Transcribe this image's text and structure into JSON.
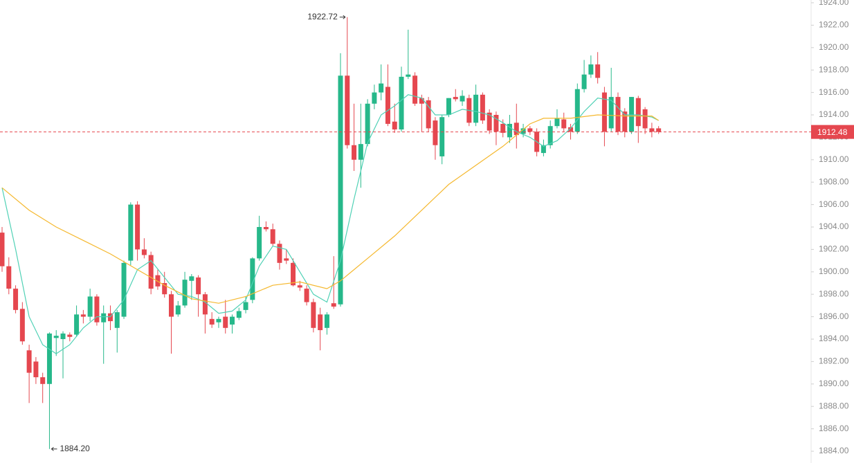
{
  "chart_data": {
    "type": "candlestick",
    "up_color": "#26b88a",
    "down_color": "#e5474f",
    "ylim": [
      1884,
      1924
    ],
    "yticks": [
      {
        "value": 1884,
        "label": "1884.00"
      },
      {
        "value": 1886,
        "label": "1886.00"
      },
      {
        "value": 1888,
        "label": "1888.00"
      },
      {
        "value": 1890,
        "label": "1890.00"
      },
      {
        "value": 1892,
        "label": "1892.00"
      },
      {
        "value": 1894,
        "label": "1894.00"
      },
      {
        "value": 1896,
        "label": "1896.00"
      },
      {
        "value": 1898,
        "label": "1898.00"
      },
      {
        "value": 1900,
        "label": "1900.00"
      },
      {
        "value": 1902,
        "label": "1902.00"
      },
      {
        "value": 1904,
        "label": "1904.00"
      },
      {
        "value": 1906,
        "label": "1906.00"
      },
      {
        "value": 1908,
        "label": "1908.00"
      },
      {
        "value": 1910,
        "label": "1910.00"
      },
      {
        "value": 1912,
        "label": "1912.00"
      },
      {
        "value": 1914,
        "label": "1914.00"
      },
      {
        "value": 1916,
        "label": "1916.00"
      },
      {
        "value": 1918,
        "label": "1918.00"
      },
      {
        "value": 1920,
        "label": "1920.00"
      },
      {
        "value": 1922,
        "label": "1922.00"
      },
      {
        "value": 1924,
        "label": "1924.00"
      }
    ],
    "open": [
      1903.5,
      1900.5,
      1898.5,
      1896.7,
      1893,
      1892,
      1890.6,
      1890,
      1894.1,
      1894,
      1894.4,
      1894.4,
      1896.2,
      1896,
      1897.8,
      1895.5,
      1896.3,
      1895,
      1896,
      1901,
      1906,
      1902,
      1901.5,
      1899.7,
      1899,
      1898,
      1896.2,
      1897,
      1899.2,
      1899.5,
      1898,
      1895.8,
      1895.5,
      1896,
      1895.3,
      1895.9,
      1896.6,
      1897.5,
      1901.2,
      1904,
      1903.8,
      1902.5,
      1901.2,
      1900.8,
      1898.8,
      1898.5,
      1897.3,
      1896.2,
      1895,
      1897.2,
      1897.1,
      1917.5,
      1911.3,
      1910,
      1911.4,
      1915,
      1916,
      1916.5,
      1913.4,
      1912.7,
      1917.4,
      1917.5,
      1915.5,
      1915.3,
      1913.5,
      1910.3,
      1914,
      1915.6,
      1915.2,
      1915.5,
      1913.3,
      1915.8,
      1914.2,
      1914,
      1913.2,
      1912,
      1913.3,
      1912.3,
      1912.8,
      1912.5,
      1910.6,
      1911.3,
      1913,
      1913.6,
      1912.9,
      1912.5,
      1916.3,
      1917.6,
      1918.5,
      1916,
      1912.8,
      1915.6,
      1914.3,
      1912.5,
      1915.5,
      1914.5,
      1912.8,
      1912.8
    ],
    "high": [
      1904,
      1901.3,
      1898.8,
      1897.3,
      1893.5,
      1892.4,
      1891,
      1894.6,
      1894.8,
      1894.7,
      1894.6,
      1897,
      1896.6,
      1898.5,
      1898,
      1897,
      1897,
      1896.6,
      1901,
      1906.2,
      1906.3,
      1903,
      1901.8,
      1900.2,
      1900,
      1898.3,
      1897.4,
      1900,
      1899.8,
      1899.7,
      1898.2,
      1896.4,
      1896,
      1897.5,
      1896.2,
      1896.8,
      1897.8,
      1901.3,
      1905,
      1904.5,
      1904.3,
      1902.8,
      1902,
      1901.2,
      1899.2,
      1898.8,
      1897.6,
      1896.8,
      1896.4,
      1901.4,
      1919.5,
      1922.72,
      1915,
      1915,
      1915.4,
      1916.7,
      1918.5,
      1918.5,
      1915,
      1918.3,
      1921.6,
      1917.8,
      1915.8,
      1915.6,
      1913.8,
      1914,
      1915.5,
      1916.3,
      1916.2,
      1915.8,
      1916.7,
      1916,
      1914.5,
      1914.3,
      1913.6,
      1914,
      1915,
      1913.2,
      1913,
      1912.8,
      1911.8,
      1913.5,
      1914.5,
      1914.2,
      1913.2,
      1916.8,
      1918.9,
      1919.3,
      1919.6,
      1916.5,
      1918.2,
      1916,
      1914.6,
      1915.6,
      1915.7,
      1914.7,
      1913.3,
      1913
    ],
    "low": [
      1900,
      1898,
      1896.3,
      1893.5,
      1888.3,
      1890,
      1888.3,
      1884.2,
      1892.5,
      1890.5,
      1893.8,
      1894.2,
      1895.4,
      1895.6,
      1895.2,
      1891.8,
      1894.8,
      1892.8,
      1895.8,
      1900.6,
      1901,
      1901.2,
      1898,
      1898.4,
      1897.7,
      1892.7,
      1896,
      1896.8,
      1897.5,
      1896,
      1894.5,
      1895,
      1895,
      1894.5,
      1894.5,
      1895.7,
      1896.3,
      1897.2,
      1901,
      1903.6,
      1902.3,
      1900.2,
      1900.7,
      1898.7,
      1898.3,
      1897,
      1894.6,
      1893,
      1894.4,
      1896.7,
      1896.9,
      1911,
      1909,
      1907.5,
      1911.2,
      1914.5,
      1915.3,
      1913,
      1912.4,
      1912.5,
      1917.2,
      1914.8,
      1912.5,
      1912.5,
      1910,
      1909.6,
      1913.8,
      1915.2,
      1914.8,
      1913,
      1913,
      1913.2,
      1912.3,
      1911.3,
      1912,
      1911.5,
      1911,
      1912,
      1912.2,
      1910.3,
      1910.3,
      1911,
      1912.8,
      1912.5,
      1911.8,
      1912.3,
      1916,
      1917.3,
      1916.8,
      1911.2,
      1912.5,
      1912.2,
      1912,
      1912.3,
      1911.5,
      1912.3,
      1912,
      1912.3
    ],
    "close": [
      1900.5,
      1898.5,
      1896.6,
      1893.8,
      1891,
      1890.6,
      1890,
      1894.5,
      1894.3,
      1894.5,
      1894.2,
      1896.2,
      1896,
      1897.8,
      1895.5,
      1896.3,
      1895.6,
      1896.4,
      1900.8,
      1906,
      1902,
      1901.5,
      1898.5,
      1898.7,
      1898,
      1896,
      1897,
      1899.3,
      1899.6,
      1898,
      1896.2,
      1895.3,
      1895.8,
      1895,
      1896,
      1896.5,
      1897.3,
      1901.2,
      1904,
      1903.8,
      1902.5,
      1900.8,
      1901,
      1898.8,
      1898.6,
      1897.3,
      1895,
      1894.8,
      1896.2,
      1896.9,
      1917.5,
      1911.3,
      1910,
      1911.4,
      1915,
      1916,
      1916.8,
      1913.2,
      1912.7,
      1917.4,
      1917.6,
      1915,
      1915,
      1912.8,
      1911.3,
      1913.8,
      1915.5,
      1915.4,
      1915.7,
      1913.3,
      1915.8,
      1913.5,
      1912.6,
      1912.5,
      1912.4,
      1913.2,
      1912.2,
      1912.8,
      1912.5,
      1910.7,
      1911.3,
      1913,
      1913.7,
      1912.8,
      1912.5,
      1916.3,
      1917.6,
      1918.5,
      1917.3,
      1912.5,
      1915.6,
      1912.5,
      1912.5,
      1915.6,
      1913,
      1912.8,
      1912.5,
      1912.48
    ],
    "lines": [
      {
        "color": "#4fd1b5",
        "x": [
          0,
          2,
          4,
          6,
          8,
          10,
          12,
          14,
          16,
          18,
          20,
          22,
          24,
          26,
          28,
          30,
          32,
          34,
          36,
          38,
          40,
          42,
          44,
          46,
          48,
          50,
          52,
          54,
          56,
          58,
          60,
          62,
          64,
          66,
          68,
          70,
          72,
          74,
          76,
          78,
          80,
          82,
          84,
          86,
          88,
          90,
          92,
          94,
          96,
          97
        ],
        "values": [
          1907.5,
          1902,
          1896,
          1893.5,
          1892.7,
          1893.5,
          1895,
          1896,
          1896,
          1897.5,
          1900.2,
          1901,
          1899.5,
          1898,
          1897.8,
          1897.3,
          1896.3,
          1896.5,
          1897.5,
          1900.5,
          1902.3,
          1902,
          1900,
          1898,
          1897.3,
          1901,
          1906.5,
          1911.5,
          1914,
          1914.8,
          1915.8,
          1915.5,
          1914,
          1914,
          1914.5,
          1914.3,
          1914,
          1913.3,
          1912.5,
          1912,
          1911.2,
          1911.7,
          1912.8,
          1914.3,
          1915.5,
          1915.3,
          1914,
          1914,
          1913.8,
          1913.5
        ]
      },
      {
        "color": "#f5b82e",
        "x": [
          0,
          4,
          8,
          12,
          16,
          20,
          24,
          28,
          32,
          36,
          40,
          44,
          48,
          50,
          54,
          58,
          62,
          66,
          70,
          74,
          78,
          80,
          84,
          88,
          92,
          96,
          97
        ],
        "values": [
          1907.5,
          1905.5,
          1904,
          1902.8,
          1901.6,
          1900.2,
          1898.8,
          1897.6,
          1897.2,
          1897.8,
          1898.8,
          1899.1,
          1898.5,
          1899.2,
          1901.2,
          1903.2,
          1905.5,
          1907.8,
          1909.5,
          1911.2,
          1913.2,
          1913.7,
          1913.7,
          1914,
          1913.9,
          1913.9,
          1913.5
        ]
      }
    ],
    "last_price": {
      "value": 1912.48,
      "label": "1912.48"
    },
    "annotations": [
      {
        "value": 1922.72,
        "label": "1922.72",
        "index": 51,
        "side": "left"
      },
      {
        "value": 1884.2,
        "label": "1884.20",
        "index": 7,
        "side": "right"
      }
    ]
  }
}
